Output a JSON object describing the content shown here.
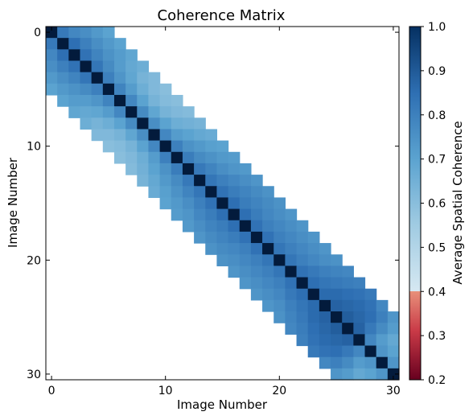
{
  "chart_data": {
    "type": "heatmap",
    "title": "Coherence Matrix",
    "xlabel": "Image Number",
    "ylabel": "Image Number",
    "n": 31,
    "x_ticks": [
      0,
      10,
      20,
      30
    ],
    "y_ticks": [
      0,
      10,
      20,
      30
    ],
    "diagonal_value": 1.0,
    "offdiag_by_distance": {
      "1": [
        0.82,
        0.85,
        0.84,
        0.83,
        0.8,
        0.79,
        0.78,
        0.77,
        0.76,
        0.78,
        0.8,
        0.81,
        0.82,
        0.83,
        0.84,
        0.85,
        0.85,
        0.84,
        0.84,
        0.83,
        0.83,
        0.84,
        0.85,
        0.86,
        0.88,
        0.89,
        0.88,
        0.78,
        0.74,
        0.74
      ],
      "2": [
        0.78,
        0.8,
        0.79,
        0.77,
        0.74,
        0.72,
        0.7,
        0.69,
        0.7,
        0.72,
        0.75,
        0.77,
        0.79,
        0.8,
        0.81,
        0.81,
        0.81,
        0.8,
        0.8,
        0.8,
        0.8,
        0.82,
        0.83,
        0.86,
        0.87,
        0.87,
        0.82,
        0.72,
        0.7
      ],
      "3": [
        0.76,
        0.76,
        0.75,
        0.72,
        0.69,
        0.66,
        0.64,
        0.64,
        0.66,
        0.7,
        0.73,
        0.75,
        0.76,
        0.78,
        0.79,
        0.79,
        0.78,
        0.78,
        0.78,
        0.78,
        0.78,
        0.8,
        0.82,
        0.85,
        0.86,
        0.85,
        0.77,
        0.68
      ],
      "4": [
        0.73,
        0.73,
        0.72,
        0.68,
        0.64,
        0.62,
        0.61,
        0.62,
        0.65,
        0.68,
        0.71,
        0.73,
        0.74,
        0.76,
        0.77,
        0.77,
        0.76,
        0.76,
        0.76,
        0.76,
        0.76,
        0.79,
        0.81,
        0.84,
        0.84,
        0.8,
        0.72
      ],
      "5": [
        0.7,
        0.7,
        0.69,
        0.66,
        0.62,
        0.6,
        0.6,
        0.61,
        0.64,
        0.67,
        0.7,
        0.72,
        0.73,
        0.74,
        0.75,
        0.75,
        0.74,
        0.74,
        0.74,
        0.74,
        0.75,
        0.78,
        0.8,
        0.82,
        0.78,
        0.74
      ]
    },
    "colorbar": {
      "label": "Average Spatial Coherence",
      "range": [
        0.2,
        1.0
      ],
      "ticks": [
        "0.2",
        "0.3",
        "0.4",
        "0.5",
        "0.6",
        "0.7",
        "0.8",
        "0.9",
        "1.0"
      ],
      "threshold": 0.4,
      "colors": {
        "low_start": "#67001f",
        "low_mid": "#c93a47",
        "low_end": "#e8907a",
        "high_start": "#d6e8f2",
        "high_q1": "#a0cbe2",
        "high_mid": "#5ba3d0",
        "high_q3": "#2e6fb3",
        "high_end": "#053061",
        "diagonal": "#031b3c",
        "background": "#ffffff"
      }
    }
  }
}
